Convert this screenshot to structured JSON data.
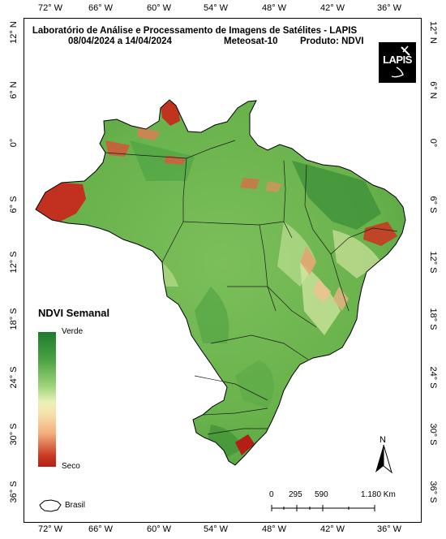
{
  "header": {
    "title": "Laboratório de Análise e Processamento de Imagens de Satélites - LAPIS",
    "date_range": "08/04/2024  a  14/04/2024",
    "satellite": "Meteosat-10",
    "product": "Produto: NDVI"
  },
  "logo": {
    "text": "LAPIS"
  },
  "axes": {
    "longitude_labels": [
      "72° W",
      "66° W",
      "60° W",
      "54° W",
      "48° W",
      "42° W",
      "36° W"
    ],
    "latitude_labels": [
      "12° N",
      "6° N",
      "0°",
      "6° S",
      "12° S",
      "18° S",
      "24° S",
      "30° S",
      "36° S"
    ]
  },
  "legend": {
    "title": "NDVI Semanal",
    "high_label": "Verde",
    "low_label": "Seco",
    "brasil_label": "Brasil",
    "colors": {
      "high": "#1f7a2e",
      "mid": "#e8f2b8",
      "low": "#b41e16"
    }
  },
  "north_arrow": {
    "label": "N"
  },
  "scale": {
    "labels": [
      "0",
      "295",
      "590",
      "1.180 Km"
    ]
  }
}
